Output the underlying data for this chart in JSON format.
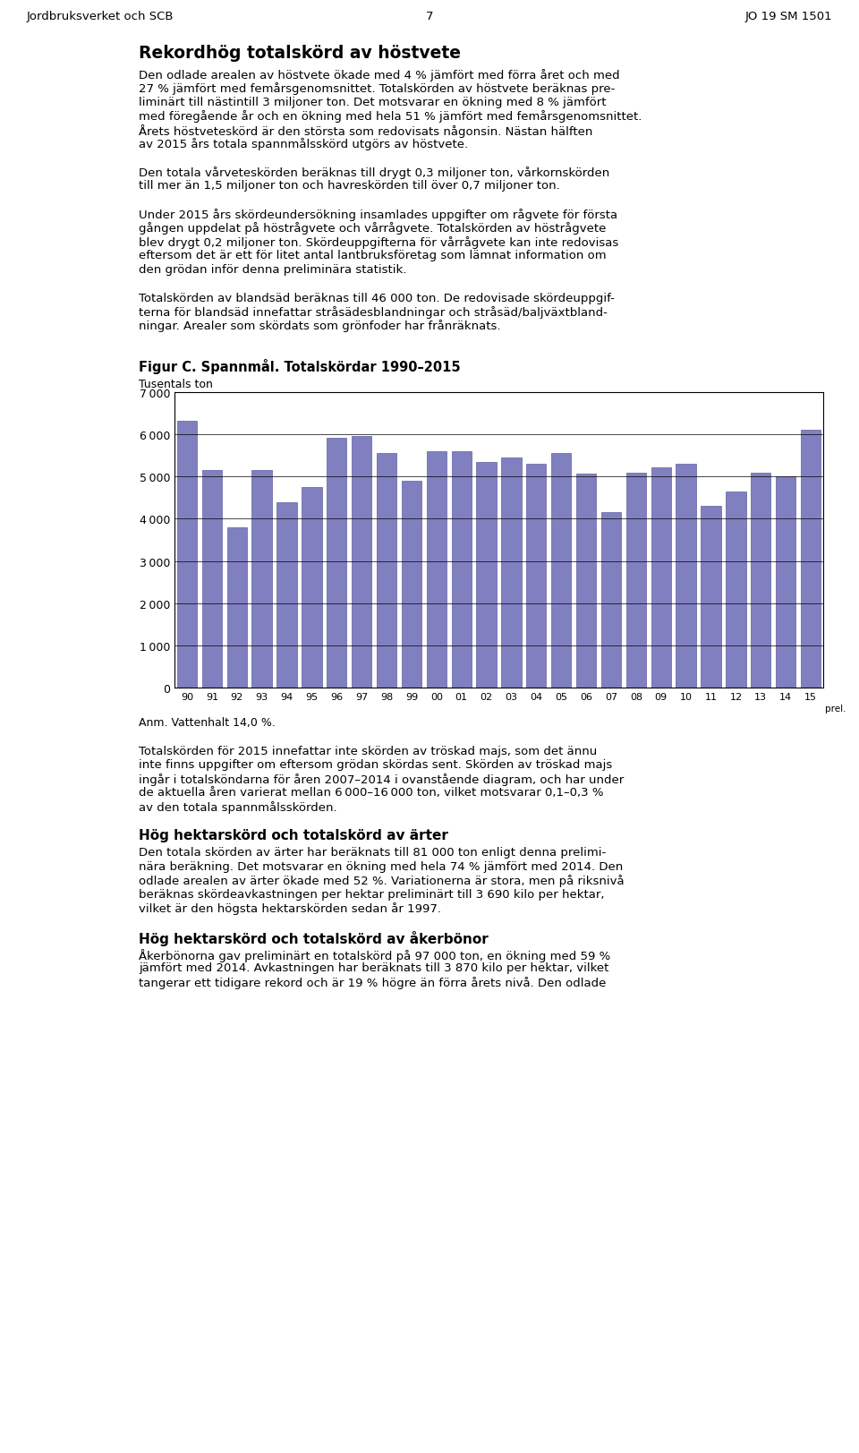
{
  "title": "Figur C. Spannmål. Totalskördar 1990–2015",
  "ylabel": "Tusentals ton",
  "note": "Anm. Vattenhalt 14,0 %.",
  "prel_label": "prel.",
  "bar_color": "#8080C0",
  "bar_edge_color": "#6060A0",
  "grid_color": "#000000",
  "background_color": "#ffffff",
  "years": [
    "90",
    "91",
    "92",
    "93",
    "94",
    "95",
    "96",
    "97",
    "98",
    "99",
    "00",
    "01",
    "02",
    "03",
    "04",
    "05",
    "06",
    "07",
    "08",
    "09",
    "10",
    "11",
    "12",
    "13",
    "14",
    "15"
  ],
  "values": [
    6320,
    5150,
    3800,
    5150,
    4400,
    4750,
    5920,
    5960,
    5550,
    4900,
    5600,
    5600,
    5350,
    5450,
    5300,
    5550,
    5060,
    4150,
    5100,
    5220,
    5300,
    4300,
    4650,
    5100,
    5000,
    6100
  ],
  "ylim": [
    0,
    7000
  ],
  "yticks": [
    0,
    1000,
    2000,
    3000,
    4000,
    5000,
    6000,
    7000
  ],
  "header_left": "Jordbruksverket och SCB",
  "header_center": "7",
  "header_right": "JO 19 SM 1501",
  "main_title": "Rekordhög totalskörd av höstvete",
  "font_body": 9.5,
  "font_header": 9.5,
  "font_chart_title": 10.5,
  "font_section_title": 11.0,
  "font_main_title": 13.5
}
